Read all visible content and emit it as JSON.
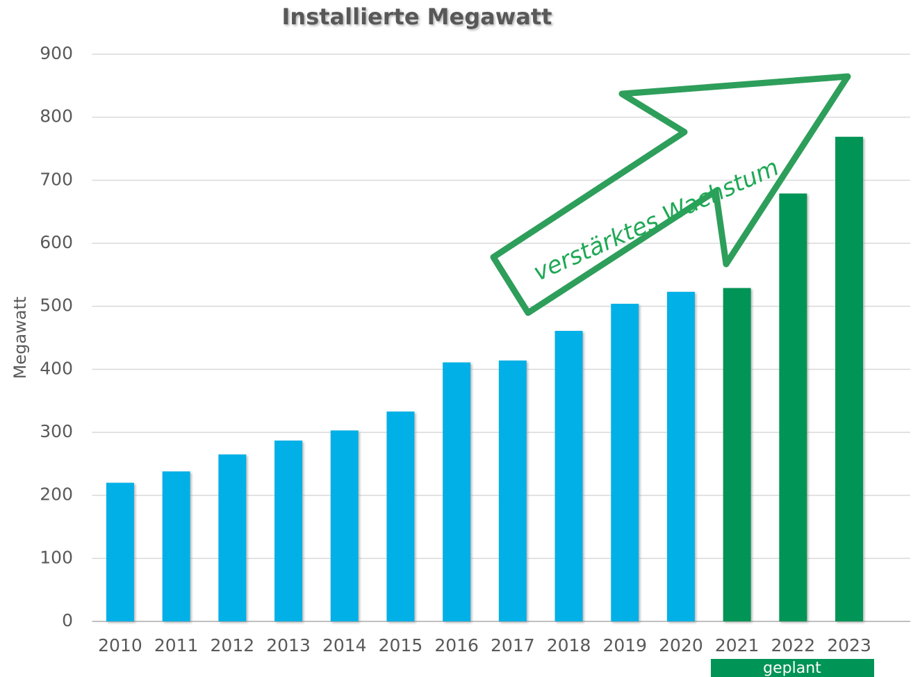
{
  "chart_data": {
    "type": "bar",
    "title": "Installierte Megawatt",
    "y_axis_label": "Megawatt",
    "categories": [
      "2010",
      "2011",
      "2012",
      "2013",
      "2014",
      "2015",
      "2016",
      "2017",
      "2018",
      "2019",
      "2020",
      "2021",
      "2022",
      "2023"
    ],
    "values": [
      220,
      238,
      265,
      287,
      303,
      333,
      411,
      414,
      461,
      504,
      523,
      529,
      679,
      769
    ],
    "colors": [
      "#00b0e6",
      "#00b0e6",
      "#00b0e6",
      "#00b0e6",
      "#00b0e6",
      "#00b0e6",
      "#00b0e6",
      "#00b0e6",
      "#00b0e6",
      "#00b0e6",
      "#00b0e6",
      "#009456",
      "#009456",
      "#009456"
    ],
    "ylim": [
      0,
      900
    ],
    "yticks": [
      0,
      100,
      200,
      300,
      400,
      500,
      600,
      700,
      800,
      900
    ],
    "grid": true,
    "annotations": [
      "verstärktes Wachstum",
      "geplant"
    ]
  }
}
